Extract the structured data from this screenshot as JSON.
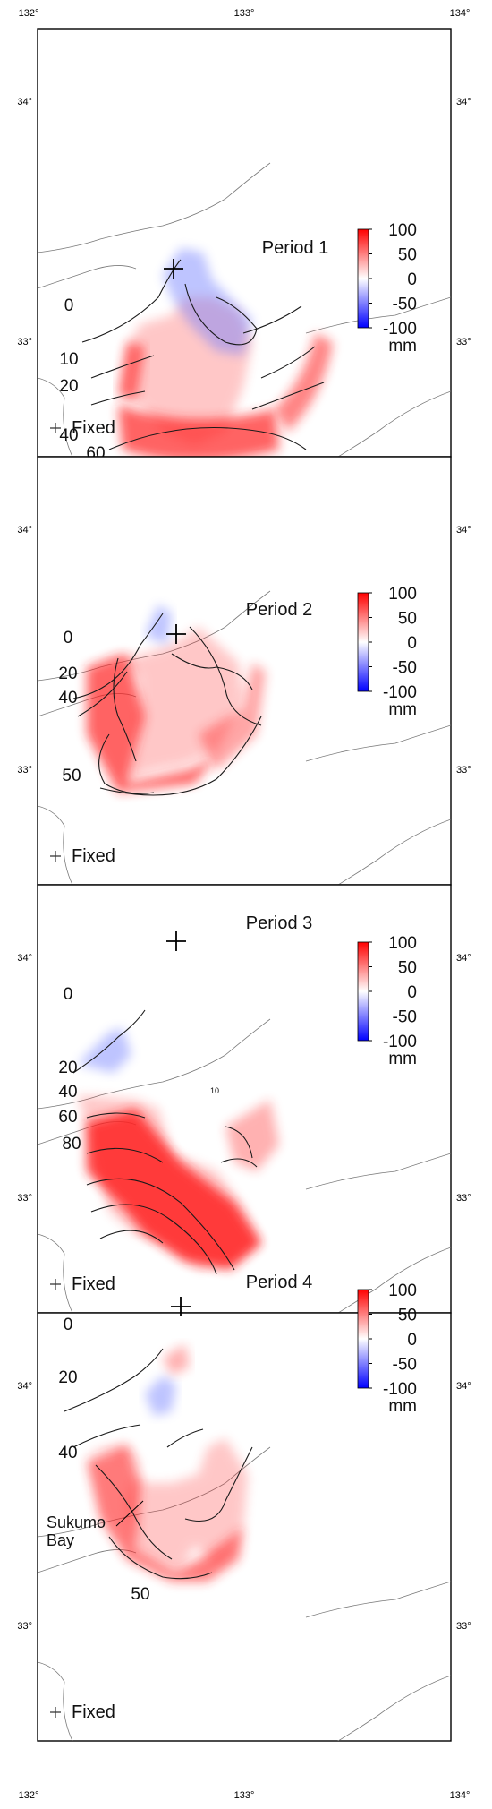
{
  "axes": {
    "top_ticks": [
      "132°",
      "133°",
      "134°"
    ],
    "bottom_ticks": [
      "132°",
      "133°",
      "134°"
    ],
    "lat_ticks": [
      "34°",
      "33°"
    ]
  },
  "colorbar": {
    "tick_labels": [
      "100",
      "50",
      "0",
      "-50",
      "-100"
    ],
    "unit": "mm",
    "colors": {
      "max": "#ff0000",
      "zero": "#ffffff",
      "min": "#0000ff"
    }
  },
  "fixed_label": "Fixed",
  "panels": [
    {
      "title": "Period 1",
      "contour_labels": [
        {
          "text": "0"
        },
        {
          "text": "10"
        },
        {
          "text": "20"
        },
        {
          "text": "40"
        },
        {
          "text": "60"
        }
      ]
    },
    {
      "title": "Period 2",
      "contour_labels": [
        {
          "text": "0"
        },
        {
          "text": "20"
        },
        {
          "text": "40"
        },
        {
          "text": "50"
        }
      ]
    },
    {
      "title": "Period 3",
      "contour_labels": [
        {
          "text": "0"
        },
        {
          "text": "20"
        },
        {
          "text": "40"
        },
        {
          "text": "60"
        },
        {
          "text": "80"
        },
        {
          "text": "10"
        }
      ]
    },
    {
      "title": "Period 4",
      "contour_labels": [
        {
          "text": "0"
        },
        {
          "text": "20"
        },
        {
          "text": "40"
        },
        {
          "text": "50"
        }
      ],
      "place_label": [
        "Sukumo",
        "Bay"
      ]
    }
  ]
}
